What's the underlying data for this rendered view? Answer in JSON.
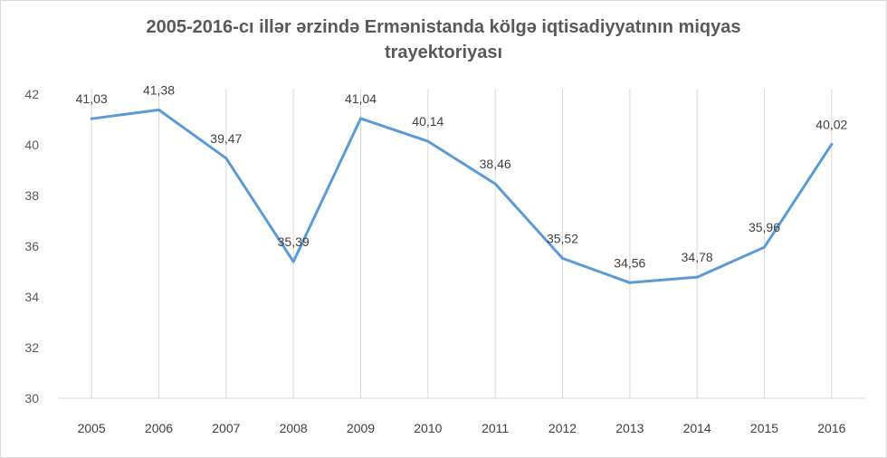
{
  "chart_data": {
    "type": "line",
    "title_line1": "2005-2016-cı illər ərzində Ermənistanda kölgə iqtisadiyyatının miqyas",
    "title_line2": "trayektoriyası",
    "categories": [
      "2005",
      "2006",
      "2007",
      "2008",
      "2009",
      "2010",
      "2011",
      "2012",
      "2013",
      "2014",
      "2015",
      "2016"
    ],
    "values": [
      41.03,
      41.38,
      39.47,
      35.39,
      41.04,
      40.14,
      38.46,
      35.52,
      34.56,
      34.78,
      35.96,
      40.02
    ],
    "data_labels": [
      "41,03",
      "41,38",
      "39,47",
      "35,39",
      "41,04",
      "40,14",
      "38,46",
      "35,52",
      "34,56",
      "34,78",
      "35,96",
      "40,02"
    ],
    "ylim": [
      30,
      42
    ],
    "yticks": [
      30,
      32,
      34,
      36,
      38,
      40,
      42
    ],
    "vertical_gridlines": true,
    "legend": "none",
    "line_color": "#5b9bd5"
  }
}
